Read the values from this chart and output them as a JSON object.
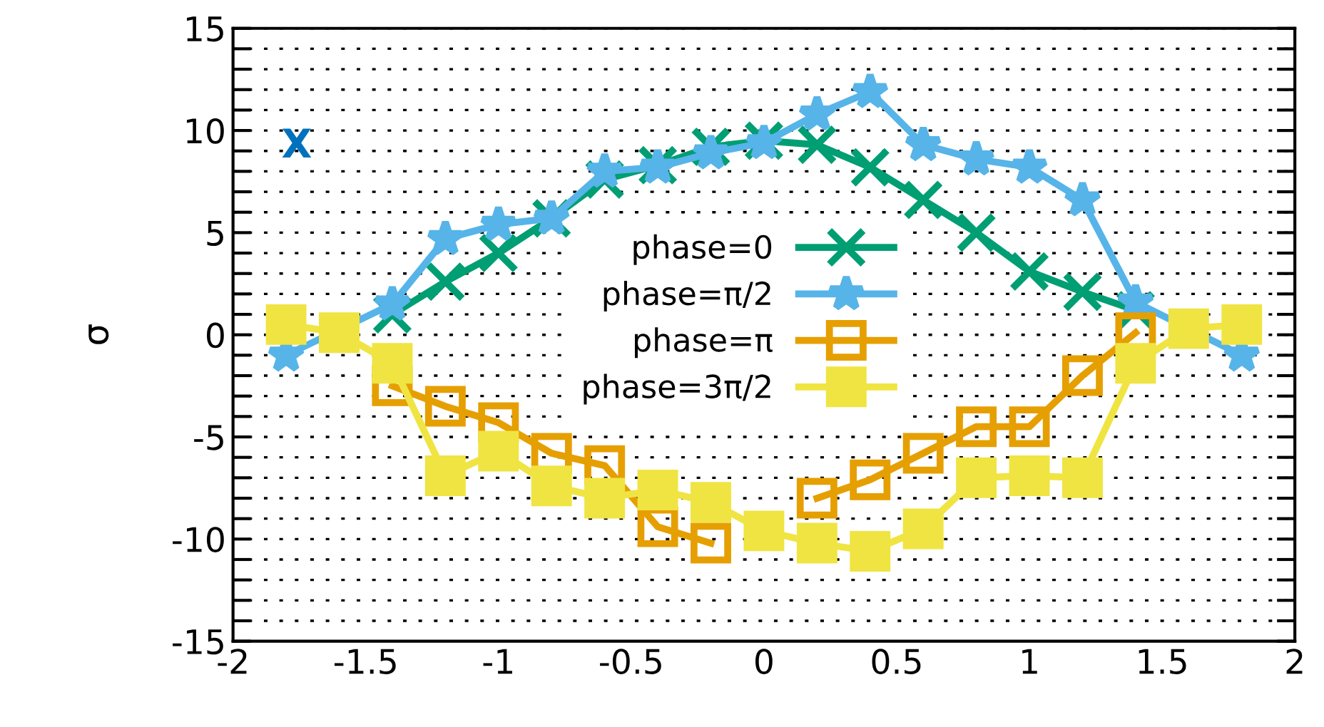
{
  "chart_data": {
    "type": "line",
    "ylabel": "σ",
    "xlim": [
      -2,
      2
    ],
    "xticks": [
      -2,
      -1.5,
      -1,
      -0.5,
      0,
      0.5,
      1,
      1.5,
      2
    ],
    "ylim": [
      -15,
      15
    ],
    "yticks": [
      -15,
      {
        "value": -14,
        "label": null
      },
      {
        "value": -13,
        "label": null
      },
      {
        "value": -12,
        "label": null
      },
      {
        "value": -11,
        "label": null
      },
      -10,
      {
        "value": -9,
        "label": null
      },
      {
        "value": -8,
        "label": null
      },
      {
        "value": -7,
        "label": null
      },
      {
        "value": -6,
        "label": null
      },
      -5,
      {
        "value": -4,
        "label": null
      },
      {
        "value": -3,
        "label": null
      },
      {
        "value": -2,
        "label": null
      },
      {
        "value": -1,
        "label": null
      },
      0,
      {
        "value": 1,
        "label": null
      },
      {
        "value": 2,
        "label": null
      },
      {
        "value": 3,
        "label": null
      },
      {
        "value": 4,
        "label": null
      },
      5,
      {
        "value": 6,
        "label": null
      },
      {
        "value": 7,
        "label": null
      },
      {
        "value": 8,
        "label": null
      },
      {
        "value": 9,
        "label": null
      },
      10,
      {
        "value": 11,
        "label": null
      },
      {
        "value": 12,
        "label": null
      },
      {
        "value": 13,
        "label": null
      },
      {
        "value": 14,
        "label": null
      },
      15
    ],
    "grid": "y",
    "legend": "center",
    "line_style": "solid",
    "annotations": [
      "X"
    ],
    "series": [
      {
        "name": "phase=0",
        "color": "#009e73",
        "marker": "cross",
        "x": [
          -1.4,
          -1.2,
          -1.0,
          -0.8,
          -0.6,
          -0.4,
          -0.2,
          0,
          0.2,
          0.4,
          0.6,
          0.8,
          1.0,
          1.2,
          1.4
        ],
        "values": [
          1.0,
          2.6,
          4.0,
          5.7,
          7.6,
          8.3,
          9.2,
          9.5,
          9.3,
          8.2,
          6.6,
          5.0,
          3.1,
          2.1,
          1.2
        ]
      },
      {
        "name": "phase=π/2",
        "color": "#56b4e9",
        "marker": "star",
        "x": [
          -1.8,
          -1.4,
          -1.2,
          -1.0,
          -0.8,
          -0.6,
          -0.4,
          -0.2,
          0,
          0.2,
          0.4,
          0.6,
          0.8,
          1.0,
          1.2,
          1.4,
          1.8
        ],
        "values": [
          -1.0,
          1.5,
          4.7,
          5.4,
          5.7,
          8.0,
          8.2,
          8.9,
          9.4,
          10.8,
          11.9,
          9.3,
          8.6,
          8.2,
          6.6,
          1.6,
          -1.0
        ]
      },
      {
        "name": "phase=π",
        "color": "#e69f00",
        "marker": "square",
        "x": [
          -1.4,
          -1.2,
          -1.0,
          -0.8,
          -0.6,
          -0.4,
          -0.2,
          0,
          0.2,
          0.4,
          0.6,
          0.8,
          1.0,
          1.2,
          1.4
        ],
        "values": [
          -2.5,
          -3.5,
          -4.3,
          -5.8,
          -6.4,
          -9.4,
          -10.2,
          null,
          -8.0,
          -7.1,
          -5.8,
          -4.5,
          -4.5,
          -2.0,
          0.1
        ]
      },
      {
        "name": "phase=3π/2",
        "color": "#f0e442",
        "marker": "square",
        "x": [
          -1.8,
          -1.6,
          -1.4,
          -1.2,
          -1.0,
          -0.8,
          -0.6,
          -0.4,
          -0.2,
          0,
          0.2,
          0.4,
          0.6,
          0.8,
          1.0,
          1.2,
          1.4,
          1.6,
          1.8
        ],
        "values": [
          0.5,
          0.1,
          -1.4,
          -6.9,
          -5.7,
          -7.4,
          -8.0,
          -7.6,
          -8.2,
          -9.6,
          -10.2,
          -10.6,
          -9.5,
          -7.0,
          -6.9,
          -7.0,
          -1.4,
          0.3,
          0.5
        ]
      }
    ]
  }
}
